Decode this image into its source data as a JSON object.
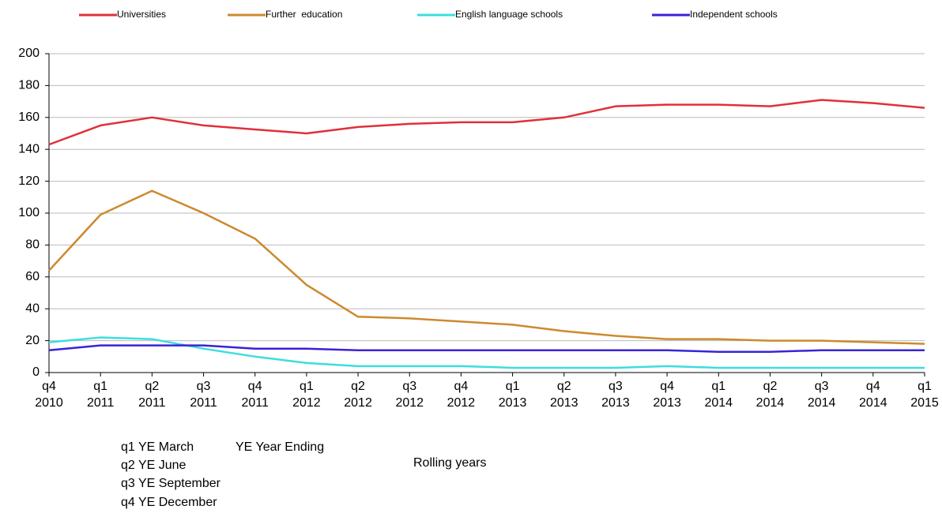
{
  "chart_data": {
    "type": "line",
    "categories": [
      [
        "q4",
        "2010"
      ],
      [
        "q1",
        "2011"
      ],
      [
        "q2",
        "2011"
      ],
      [
        "q3",
        "2011"
      ],
      [
        "q4",
        "2011"
      ],
      [
        "q1",
        "2012"
      ],
      [
        "q2",
        "2012"
      ],
      [
        "q3",
        "2012"
      ],
      [
        "q4",
        "2012"
      ],
      [
        "q1",
        "2013"
      ],
      [
        "q2",
        "2013"
      ],
      [
        "q3",
        "2013"
      ],
      [
        "q4",
        "2013"
      ],
      [
        "q1",
        "2014"
      ],
      [
        "q2",
        "2014"
      ],
      [
        "q3",
        "2014"
      ],
      [
        "q4",
        "2014"
      ],
      [
        "q1",
        "2015"
      ]
    ],
    "series": [
      {
        "name": "Universities",
        "color": "#e0303a",
        "values": [
          143,
          155,
          160,
          155,
          152.5,
          150,
          154,
          156,
          157,
          157,
          160,
          167,
          168,
          168,
          167,
          171,
          169,
          166
        ]
      },
      {
        "name": "Further  education",
        "color": "#cc8a2e",
        "values": [
          64,
          99,
          114,
          100,
          84,
          55,
          35,
          34,
          32,
          30,
          26,
          23,
          21,
          21,
          20,
          20,
          19,
          18
        ]
      },
      {
        "name": "English language schools",
        "color": "#3ddde0",
        "values": [
          19,
          22,
          21,
          15,
          10,
          6,
          4,
          4,
          4,
          3,
          3,
          3,
          4,
          3,
          3,
          3,
          3,
          3
        ]
      },
      {
        "name": "Independent schools",
        "color": "#3a22d8",
        "values": [
          14,
          17,
          17,
          17,
          15,
          15,
          14,
          14,
          14,
          14,
          14,
          14,
          14,
          13,
          13,
          14,
          14,
          14
        ]
      }
    ],
    "ylim": [
      0,
      200
    ],
    "yticks": [
      0,
      20,
      40,
      60,
      80,
      100,
      120,
      140,
      160,
      180,
      200
    ],
    "grid": true,
    "x_label": "Rolling years",
    "notes": [
      "q1 YE March",
      "YE Year Ending",
      "q2 YE June",
      "q3 YE September",
      "q4 YE December"
    ]
  }
}
